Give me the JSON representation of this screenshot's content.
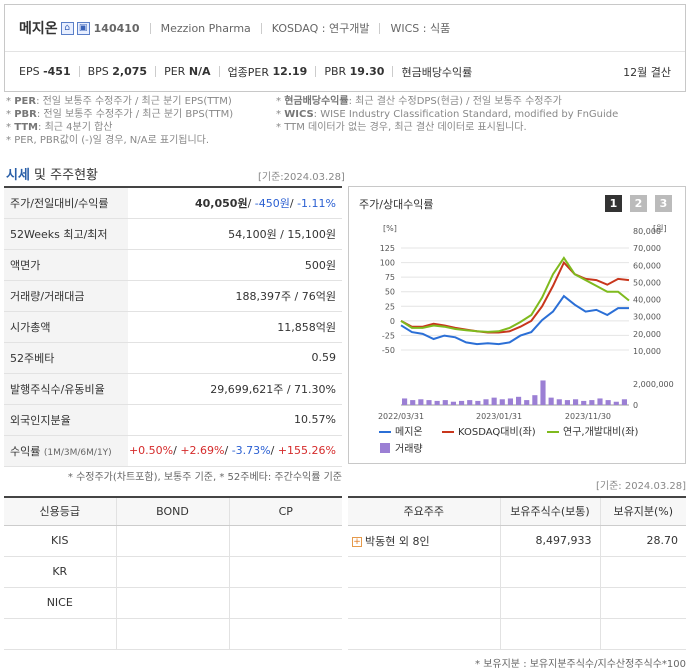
{
  "company": {
    "name": "메지온",
    "code": "140410",
    "english_name": "Mezzion Pharma",
    "market": "KOSDAQ : 연구개발",
    "wics": "WICS : 식품"
  },
  "metrics": {
    "eps_label": "EPS",
    "eps_value": "-451",
    "bps_label": "BPS",
    "bps_value": "2,075",
    "per_label": "PER",
    "per_value": "N/A",
    "ind_per_label": "업종PER",
    "ind_per_value": "12.19",
    "pbr_label": "PBR",
    "pbr_value": "19.30",
    "div_label": "현금배당수익률",
    "settlement": "12월 결산"
  },
  "notes_left": [
    {
      "key": "PER",
      "text": ": 전일 보통주 수정주가 / 최근 분기 EPS(TTM)"
    },
    {
      "key": "PBR",
      "text": ": 전일 보통주 수정주가 / 최근 분기 BPS(TTM)"
    },
    {
      "key": "TTM",
      "text": ": 최근 4분기 합산"
    },
    {
      "key": "",
      "text": "PER, PBR값이 (-)일 경우, N/A로 표기됩니다."
    }
  ],
  "notes_right": [
    {
      "key": "현금배당수익률",
      "text": ": 최근 결산 수정DPS(현금) / 전일 보통주 수정주가"
    },
    {
      "key": "WICS",
      "text": ": WISE Industry Classification Standard, modified by FnGuide"
    },
    {
      "key": "",
      "text": "TTM 데이터가 없는 경우, 최근 결산 데이터로 표시됩니다."
    }
  ],
  "section": {
    "title_a": "시세",
    "title_b": " 및 주주현황",
    "base_date": "[기준:2024.03.28]",
    "base_date2": "[기준: 2024.03.28]"
  },
  "summary": [
    {
      "label": "주가/전일대비/수익률"
    },
    {
      "label": "52Weeks 최고/최저",
      "value": "54,100원 / 15,100원"
    },
    {
      "label": "액면가",
      "value": "500원"
    },
    {
      "label": "거래량/거래대금",
      "value": "188,397주 / 76억원"
    },
    {
      "label": "시가총액",
      "value": "11,858억원"
    },
    {
      "label": "52주베타",
      "value": "0.59"
    },
    {
      "label": "발행주식수/유동비율",
      "value": "29,699,621주 / 71.30%"
    },
    {
      "label": "외국인지분율",
      "value": "10.57%"
    },
    {
      "label": "수익률",
      "label_small": "(1M/3M/6M/1Y)"
    }
  ],
  "price_row": {
    "price": "40,050원",
    "change": "-450원",
    "rate": "-1.11%"
  },
  "returns_row": {
    "r1": "+0.50%",
    "r2": "+2.69%",
    "r3": "-3.73%",
    "r4": "+155.26%"
  },
  "summary_note": "* 수정주가(차트포함), 보통주 기준, * 52주베타: 주간수익률 기준",
  "chart_panel": {
    "title": "주가/상대수익률",
    "pages": [
      "1",
      "2",
      "3"
    ],
    "left_unit": "[%]",
    "right_unit": "[원]",
    "vol_tick": "2,000,000",
    "vol_zero": "0"
  },
  "chart_data": {
    "type": "line",
    "x_labels": [
      "2022/03/31",
      "2023/01/31",
      "2023/11/30"
    ],
    "left_axis": {
      "unit": "[%]",
      "ticks": [
        125,
        100,
        75,
        50,
        25,
        0,
        -25,
        -50
      ]
    },
    "right_axis": {
      "unit": "[원]",
      "ticks": [
        "80,000",
        "70,000",
        "60,000",
        "50,000",
        "40,000",
        "30,000",
        "20,000",
        "10,000"
      ]
    },
    "series": [
      {
        "name": "메지온",
        "color": "#2b6fd6",
        "axis": "right",
        "values": [
          25000,
          21000,
          20000,
          17000,
          19000,
          18000,
          15000,
          14000,
          14500,
          14000,
          15000,
          19000,
          21000,
          28000,
          33000,
          42000,
          37000,
          33000,
          34000,
          31000,
          35000,
          35000
        ]
      },
      {
        "name": "KOSDAQ대비(좌)",
        "color": "#c8361c",
        "axis": "left",
        "values": [
          0,
          -10,
          -10,
          -5,
          -8,
          -12,
          -15,
          -18,
          -20,
          -20,
          -18,
          -10,
          0,
          25,
          60,
          100,
          80,
          72,
          70,
          62,
          72,
          70
        ]
      },
      {
        "name": "연구,개발대비(좌)",
        "color": "#7fba1e",
        "axis": "left",
        "values": [
          0,
          -12,
          -12,
          -8,
          -10,
          -14,
          -16,
          -18,
          -19,
          -18,
          -12,
          -2,
          10,
          40,
          80,
          108,
          80,
          70,
          60,
          50,
          50,
          35
        ]
      }
    ],
    "volume": {
      "name": "거래량",
      "color": "#9b7fd4",
      "values": [
        400000,
        300000,
        350000,
        300000,
        250000,
        300000,
        200000,
        250000,
        300000,
        250000,
        350000,
        450000,
        350000,
        400000,
        500000,
        300000,
        600000,
        1500000,
        450000,
        350000,
        300000,
        350000,
        250000,
        300000,
        400000,
        300000,
        200000,
        350000
      ]
    }
  },
  "credit": {
    "headers": [
      "신용등급",
      "BOND",
      "CP"
    ],
    "rows": [
      "KIS",
      "KR",
      "NICE"
    ]
  },
  "holders": {
    "headers": [
      "주요주주",
      "보유주식수(보통)",
      "보유지분(%)"
    ],
    "rows": [
      {
        "name": "박동현 외 8인",
        "shares": "8,497,933",
        "pct": "28.70"
      }
    ]
  },
  "footer_note": "* 보유지분 : 보유지분주식수/지수산정주식수*100"
}
